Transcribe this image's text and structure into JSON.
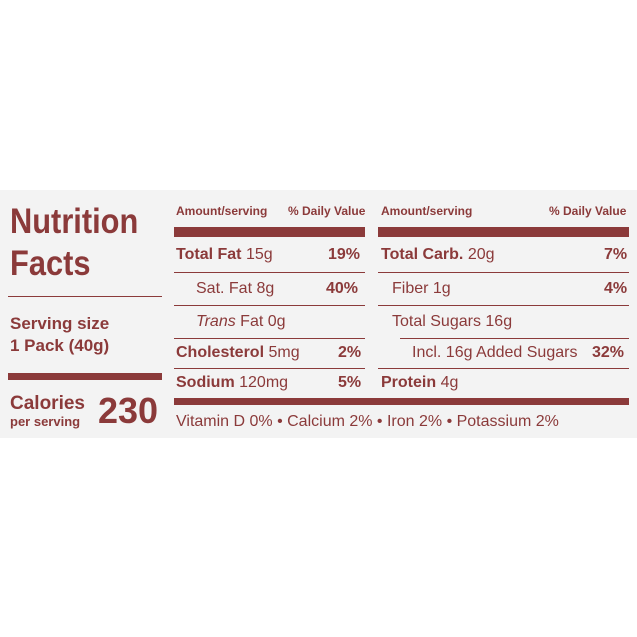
{
  "label": {
    "title_line1": "Nutrition",
    "title_line2": "Facts",
    "serving_size_label": "Serving size",
    "serving_size_value": "1 Pack (40g)",
    "calories_label": "Calories",
    "per_serving_label": "per serving",
    "calories_value": "230",
    "left_header": {
      "amount": "Amount/serving",
      "dv": "% Daily Value"
    },
    "right_header": {
      "amount": "Amount/serving",
      "dv": "% Daily Value"
    },
    "left_rows": [
      {
        "name": "Total Fat",
        "amount": "15g",
        "dv": "19%"
      },
      {
        "name": "Sat. Fat",
        "amount": "8g",
        "dv": "40%"
      },
      {
        "name_italic": "Trans",
        "name": "Fat",
        "amount": "0g",
        "dv": ""
      },
      {
        "name": "Cholesterol",
        "amount": "5mg",
        "dv": "2%"
      },
      {
        "name": "Sodium",
        "amount": "120mg",
        "dv": "5%"
      }
    ],
    "right_rows": [
      {
        "name": "Total Carb.",
        "amount": "20g",
        "dv": "7%"
      },
      {
        "name": "Fiber",
        "amount": "1g",
        "dv": "4%"
      },
      {
        "name": "Total Sugars",
        "amount": "16g",
        "dv": ""
      },
      {
        "name": "Incl. 16g Added Sugars",
        "amount": "",
        "dv": "32%"
      },
      {
        "name": "Protein",
        "amount": "4g",
        "dv": ""
      }
    ],
    "vitamins": "Vitamin D 0% • Calcium 2% • Iron 2% • Potassium 2%"
  },
  "colors": {
    "ink": "#8b3a3a",
    "panel": "#f3f3f3"
  }
}
